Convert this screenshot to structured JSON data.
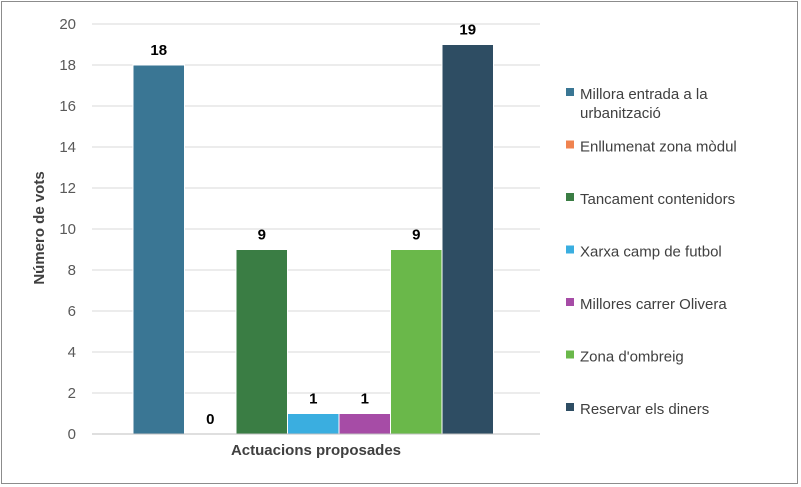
{
  "chart_data": {
    "type": "bar",
    "title": "",
    "xlabel": "Actuacions proposades",
    "ylabel": "Número de vots",
    "ylim": [
      0,
      20
    ],
    "ytick_step": 2,
    "yticks": [
      "0",
      "2",
      "4",
      "6",
      "8",
      "10",
      "12",
      "14",
      "16",
      "18",
      "20"
    ],
    "grid": true,
    "legend_position": "right",
    "series": [
      {
        "name": "Millora entrada a la urbanització",
        "value": 18,
        "label": "18",
        "color": "#3a7694"
      },
      {
        "name": "Enllumenat zona mòdul",
        "value": 0,
        "label": "0",
        "color": "#f0834f"
      },
      {
        "name": "Tancament contenidors",
        "value": 9,
        "label": "9",
        "color": "#3a7d44"
      },
      {
        "name": "Xarxa camp de futbol",
        "value": 1,
        "label": "1",
        "color": "#3aaee0"
      },
      {
        "name": "Millores carrer Olivera",
        "value": 1,
        "label": "1",
        "color": "#a64ca6"
      },
      {
        "name": "Zona d'ombreig",
        "value": 9,
        "label": "9",
        "color": "#6ab84a"
      },
      {
        "name": "Reservar els diners",
        "value": 19,
        "label": "19",
        "color": "#2e4d63"
      }
    ]
  }
}
